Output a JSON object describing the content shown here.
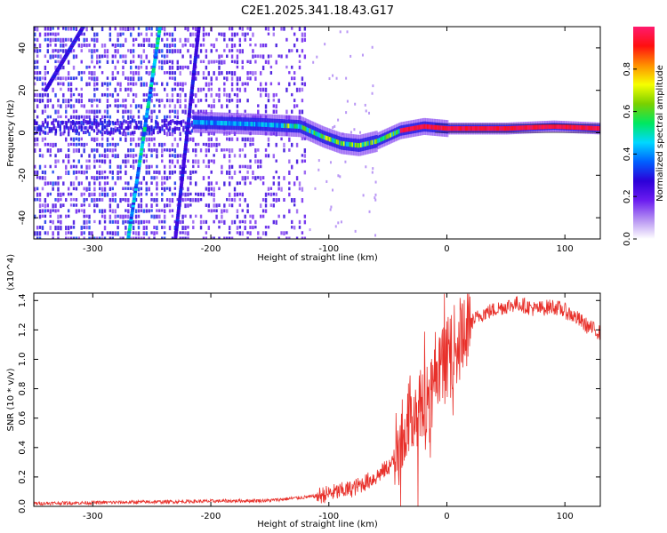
{
  "title": "C2E1.2025.341.18.43.G17",
  "colors": {
    "snr_line": "#e8302a",
    "ridge_core": "#ff2a4a",
    "background": "#ffffff",
    "axis": "#000000"
  },
  "chart_data": [
    {
      "type": "heatmap",
      "name": "spectrogram",
      "xlabel": "Height of straight line (km)",
      "ylabel": "Frequency (Hz)",
      "xlim": [
        -350,
        130
      ],
      "ylim": [
        -50,
        50
      ],
      "xticks": [
        -300,
        -200,
        -100,
        0,
        100
      ],
      "yticks": [
        -40,
        -20,
        0,
        20,
        40
      ],
      "xtick_labels": [
        "-300",
        "-200",
        "-100",
        "0",
        "100"
      ],
      "ytick_labels": [
        "-40",
        "-20",
        "0",
        "20",
        "40"
      ],
      "colorbar": {
        "label": "Normalized spectral amplitude",
        "range": [
          0,
          1
        ],
        "ticks": [
          0.0,
          0.2,
          0.4,
          0.6,
          0.8
        ],
        "tick_labels": [
          "0.0",
          "0.2",
          "0.4",
          "0.6",
          "0.8"
        ],
        "stops": [
          "#ffffff",
          "#b591f2",
          "#6b1cf0",
          "#2c00d8",
          "#0060ff",
          "#00d8ff",
          "#00e860",
          "#7ad000",
          "#f6ff00",
          "#ff9000",
          "#ff1010",
          "#ff1a6e"
        ]
      },
      "ridge_center": [
        [
          -215,
          5
        ],
        [
          -160,
          4
        ],
        [
          -125,
          3
        ],
        [
          -105,
          -2
        ],
        [
          -90,
          -5
        ],
        [
          -75,
          -6
        ],
        [
          -60,
          -4
        ],
        [
          -40,
          1
        ],
        [
          -20,
          3
        ],
        [
          0,
          2
        ],
        [
          50,
          2
        ],
        [
          90,
          3
        ],
        [
          130,
          2
        ]
      ],
      "streaks": [
        {
          "from": [
            -270,
            -50
          ],
          "to": [
            -243,
            50
          ]
        },
        {
          "from": [
            -230,
            -50
          ],
          "to": [
            -210,
            50
          ]
        },
        {
          "from": [
            -340,
            20
          ],
          "to": [
            -308,
            50
          ]
        }
      ]
    },
    {
      "type": "line",
      "name": "snr",
      "xlabel": "Height of straight line (km)",
      "ylabel": "SNR (10 * v/v)",
      "scale_label": "(x10^4)",
      "xlim": [
        -350,
        130
      ],
      "ylim": [
        0,
        1.45
      ],
      "xticks": [
        -300,
        -200,
        -100,
        0,
        100
      ],
      "yticks": [
        0.0,
        0.2,
        0.4,
        0.6,
        0.8,
        1.0,
        1.2,
        1.4
      ],
      "xtick_labels": [
        "-300",
        "-200",
        "-100",
        "0",
        "100"
      ],
      "ytick_labels": [
        "0.0",
        "0.2",
        "0.4",
        "0.6",
        "0.8",
        "1.0",
        "1.2",
        "1.4"
      ],
      "series": [
        {
          "name": "SNR",
          "x": [
            -350,
            -250,
            -150,
            -110,
            -80,
            -60,
            -45,
            -40,
            -32,
            -20,
            -10,
            0,
            10,
            20,
            30,
            45,
            60,
            75,
            90,
            100,
            110,
            120,
            130
          ],
          "y": [
            0.02,
            0.03,
            0.04,
            0.07,
            0.12,
            0.2,
            0.3,
            0.45,
            0.62,
            0.68,
            0.8,
            1.02,
            1.12,
            1.25,
            1.31,
            1.35,
            1.38,
            1.34,
            1.36,
            1.33,
            1.28,
            1.22,
            1.18
          ]
        }
      ]
    }
  ]
}
